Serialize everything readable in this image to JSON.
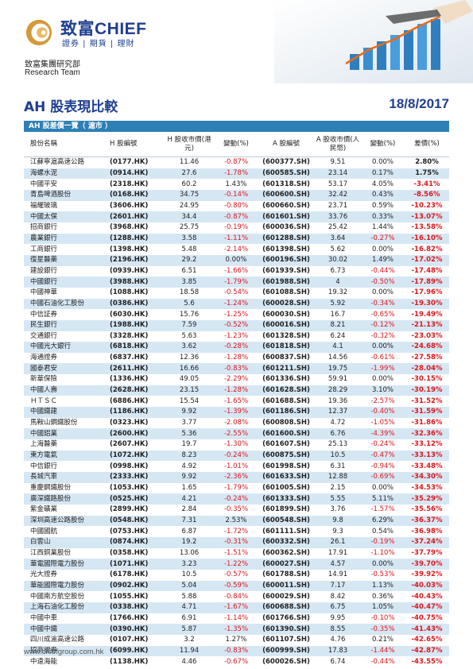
{
  "header": {
    "brand_zh": "致富",
    "brand_en": "CHIEF",
    "tagline": "證券 | 期貨 | 理財",
    "dept_zh": "致富集團研究部",
    "dept_en": "Research Team"
  },
  "report": {
    "title": "AH 股表現比較",
    "date": "18/8/2017"
  },
  "table": {
    "section_label": "AH 股差價一覽（ 滬市 ）",
    "columns": [
      "股份名稱",
      "H 股編號",
      "H 股收市價(港元)",
      "變動(%)",
      "A 股編號",
      "A 股收市價(人民幣)",
      "變動(%)",
      "差價(%)"
    ],
    "rows": [
      [
        "江蘇寧滬高速公路",
        "(0177.HK)",
        "11.46",
        "-0.87%",
        "(600377.SH)",
        "9.51",
        "0.00%",
        "2.80%"
      ],
      [
        "海螺水泥",
        "(0914.HK)",
        "27.6",
        "-1.78%",
        "(600585.SH)",
        "23.14",
        "0.17%",
        "1.75%"
      ],
      [
        "中國平安",
        "(2318.HK)",
        "60.2",
        "1.43%",
        "(601318.SH)",
        "53.17",
        "4.05%",
        "-3.41%"
      ],
      [
        "青島啤酒股份",
        "(0168.HK)",
        "34.75",
        "-0.14%",
        "(600600.SH)",
        "32.42",
        "0.43%",
        "-8.56%"
      ],
      [
        "福耀玻璃",
        "(3606.HK)",
        "24.95",
        "-0.80%",
        "(600660.SH)",
        "23.71",
        "0.59%",
        "-10.23%"
      ],
      [
        "中國太保",
        "(2601.HK)",
        "34.4",
        "-0.87%",
        "(601601.SH)",
        "33.76",
        "0.33%",
        "-13.07%"
      ],
      [
        "招商銀行",
        "(3968.HK)",
        "25.75",
        "-0.19%",
        "(600036.SH)",
        "25.42",
        "1.44%",
        "-13.58%"
      ],
      [
        "農業銀行",
        "(1288.HK)",
        "3.58",
        "-1.11%",
        "(601288.SH)",
        "3.64",
        "-0.27%",
        "-16.10%"
      ],
      [
        "工商銀行",
        "(1398.HK)",
        "5.48",
        "-2.14%",
        "(601398.SH)",
        "5.62",
        "0.00%",
        "-16.82%"
      ],
      [
        "復星醫藥",
        "(2196.HK)",
        "29.2",
        "0.00%",
        "(600196.SH)",
        "30.02",
        "1.49%",
        "-17.02%"
      ],
      [
        "建設銀行",
        "(0939.HK)",
        "6.51",
        "-1.66%",
        "(601939.SH)",
        "6.73",
        "-0.44%",
        "-17.48%"
      ],
      [
        "中國銀行",
        "(3988.HK)",
        "3.85",
        "-1.79%",
        "(601988.SH)",
        "4",
        "-0.50%",
        "-17.89%"
      ],
      [
        "中國神華",
        "(1088.HK)",
        "18.58",
        "-0.54%",
        "(601088.SH)",
        "19.32",
        "0.00%",
        "-17.96%"
      ],
      [
        "中國石油化工股份",
        "(0386.HK)",
        "5.6",
        "-1.24%",
        "(600028.SH)",
        "5.92",
        "-0.34%",
        "-19.30%"
      ],
      [
        "中信証券",
        "(6030.HK)",
        "15.76",
        "-1.25%",
        "(600030.SH)",
        "16.7",
        "-0.65%",
        "-19.49%"
      ],
      [
        "民生銀行",
        "(1988.HK)",
        "7.59",
        "-0.52%",
        "(600016.SH)",
        "8.21",
        "-0.12%",
        "-21.13%"
      ],
      [
        "交通銀行",
        "(3328.HK)",
        "5.63",
        "-1.23%",
        "(601328.SH)",
        "6.24",
        "-0.32%",
        "-23.03%"
      ],
      [
        "中國光大銀行",
        "(6818.HK)",
        "3.62",
        "-0.28%",
        "(601818.SH)",
        "4.1",
        "0.00%",
        "-24.68%"
      ],
      [
        "海通證券",
        "(6837.HK)",
        "12.36",
        "-1.28%",
        "(600837.SH)",
        "14.56",
        "-0.61%",
        "-27.58%"
      ],
      [
        "國泰君安",
        "(2611.HK)",
        "16.66",
        "-0.83%",
        "(601211.SH)",
        "19.75",
        "-1.99%",
        "-28.04%"
      ],
      [
        "新華保險",
        "(1336.HK)",
        "49.05",
        "-2.29%",
        "(601336.SH)",
        "59.91",
        "0.00%",
        "-30.15%"
      ],
      [
        "中國人壽",
        "(2628.HK)",
        "23.15",
        "-1.28%",
        "(601628.SH)",
        "28.29",
        "3.10%",
        "-30.19%"
      ],
      [
        "ＨＴＳＣ",
        "(6886.HK)",
        "15.54",
        "-1.65%",
        "(601688.SH)",
        "19.36",
        "-2.57%",
        "-31.52%"
      ],
      [
        "中國鐵建",
        "(1186.HK)",
        "9.92",
        "-1.39%",
        "(601186.SH)",
        "12.37",
        "-0.40%",
        "-31.59%"
      ],
      [
        "馬鞍山鋼鐵股份",
        "(0323.HK)",
        "3.77",
        "-2.08%",
        "(600808.SH)",
        "4.72",
        "-1.05%",
        "-31.86%"
      ],
      [
        "中國鋁業",
        "(2600.HK)",
        "5.36",
        "-2.55%",
        "(601600.SH)",
        "6.76",
        "-4.39%",
        "-32.36%"
      ],
      [
        "上海醫藥",
        "(2607.HK)",
        "19.7",
        "-1.30%",
        "(601607.SH)",
        "25.13",
        "-0.24%",
        "-33.12%"
      ],
      [
        "東方電氣",
        "(1072.HK)",
        "8.23",
        "-0.24%",
        "(600875.SH)",
        "10.5",
        "-0.47%",
        "-33.13%"
      ],
      [
        "中信銀行",
        "(0998.HK)",
        "4.92",
        "-1.01%",
        "(601998.SH)",
        "6.31",
        "-0.94%",
        "-33.48%"
      ],
      [
        "長城汽車",
        "(2333.HK)",
        "9.92",
        "-2.36%",
        "(601633.SH)",
        "12.88",
        "-0.69%",
        "-34.30%"
      ],
      [
        "重慶鋼鐵股份",
        "(1053.HK)",
        "1.65",
        "-1.79%",
        "(601005.SH)",
        "2.15",
        "0.00%",
        "-34.53%"
      ],
      [
        "廣深鐵路股份",
        "(0525.HK)",
        "4.21",
        "-0.24%",
        "(601333.SH)",
        "5.55",
        "5.11%",
        "-35.29%"
      ],
      [
        "紫金礦業",
        "(2899.HK)",
        "2.84",
        "-0.35%",
        "(601899.SH)",
        "3.76",
        "-1.57%",
        "-35.56%"
      ],
      [
        "深圳高速公路股份",
        "(0548.HK)",
        "7.31",
        "2.53%",
        "(600548.SH)",
        "9.8",
        "6.29%",
        "-36.37%"
      ],
      [
        "中國國航",
        "(0753.HK)",
        "6.87",
        "-1.72%",
        "(601111.SH)",
        "9.3",
        "0.54%",
        "-36.98%"
      ],
      [
        "白雲山",
        "(0874.HK)",
        "19.2",
        "-0.31%",
        "(600332.SH)",
        "26.1",
        "-0.19%",
        "-37.24%"
      ],
      [
        "江西銅業股份",
        "(0358.HK)",
        "13.06",
        "-1.51%",
        "(600362.SH)",
        "17.91",
        "-1.10%",
        "-37.79%"
      ],
      [
        "華電國際電力股份",
        "(1071.HK)",
        "3.23",
        "-1.22%",
        "(600027.SH)",
        "4.57",
        "0.00%",
        "-39.70%"
      ],
      [
        "光大證券",
        "(6178.HK)",
        "10.5",
        "-0.57%",
        "(601788.SH)",
        "14.91",
        "-0.53%",
        "-39.92%"
      ],
      [
        "華能國際電力股份",
        "(0902.HK)",
        "5.04",
        "-0.59%",
        "(600011.SH)",
        "7.17",
        "1.13%",
        "-40.03%"
      ],
      [
        "中國南方航空股份",
        "(1055.HK)",
        "5.88",
        "-0.84%",
        "(600029.SH)",
        "8.42",
        "0.36%",
        "-40.43%"
      ],
      [
        "上海石油化工股份",
        "(0338.HK)",
        "4.71",
        "-1.67%",
        "(600688.SH)",
        "6.75",
        "1.05%",
        "-40.47%"
      ],
      [
        "中國中車",
        "(1766.HK)",
        "6.91",
        "-1.14%",
        "(601766.SH)",
        "9.95",
        "-0.10%",
        "-40.75%"
      ],
      [
        "中國中鐵",
        "(0390.HK)",
        "5.87",
        "-1.35%",
        "(601390.SH)",
        "8.55",
        "-0.35%",
        "-41.43%"
      ],
      [
        "四川成渝高速公路",
        "(0107.HK)",
        "3.2",
        "1.27%",
        "(601107.SH)",
        "4.76",
        "0.21%",
        "-42.65%"
      ],
      [
        "招商證券",
        "(6099.HK)",
        "11.94",
        "-0.83%",
        "(600999.SH)",
        "17.83",
        "-1.44%",
        "-42.87%"
      ],
      [
        "中遠海能",
        "(1138.HK)",
        "4.46",
        "-0.67%",
        "(600026.SH)",
        "6.74",
        "-0.44%",
        "-43.55%"
      ]
    ]
  },
  "footer": {
    "website": "www.chiefgroup.com.hk"
  },
  "colors": {
    "brand_blue": "#1f3f8f",
    "bar_blue": "#2e7fb6",
    "row_alt": "#d6e7f4",
    "negative": "#e0161b"
  }
}
